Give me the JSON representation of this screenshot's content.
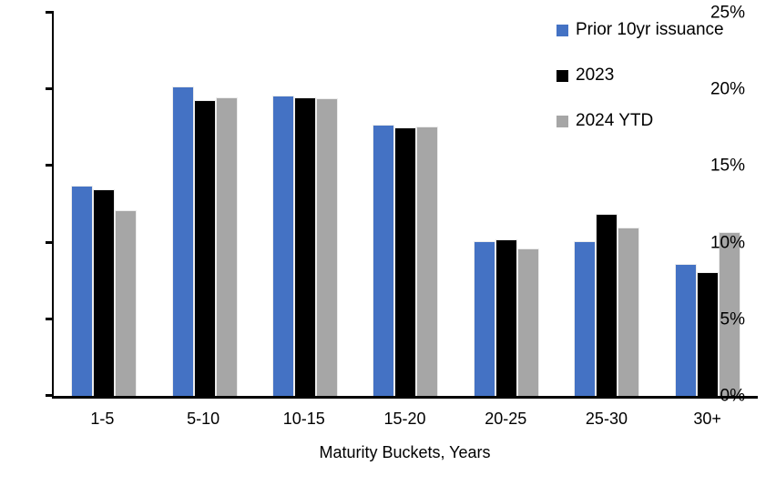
{
  "chart_data": {
    "type": "bar",
    "title": "",
    "xlabel": "Maturity Buckets, Years",
    "ylabel": "",
    "ylim": [
      0,
      25
    ],
    "y_ticks": [
      "0%",
      "5%",
      "10%",
      "15%",
      "20%",
      "25%"
    ],
    "grid": false,
    "legend_position": "top-right",
    "categories": [
      "1-5",
      "5-10",
      "10-15",
      "15-20",
      "20-25",
      "25-30",
      "30+"
    ],
    "series": [
      {
        "name": "Prior 10yr issuance",
        "color": "#4472C4",
        "values": [
          13.7,
          20.2,
          19.6,
          17.7,
          10.1,
          10.1,
          8.6
        ]
      },
      {
        "name": "2023",
        "color": "#000000",
        "values": [
          13.5,
          19.3,
          19.5,
          17.5,
          10.2,
          11.9,
          8.1
        ]
      },
      {
        "name": "2024 YTD",
        "color": "#A6A6A6",
        "values": [
          12.1,
          19.5,
          19.4,
          17.6,
          9.6,
          11.0,
          10.7
        ]
      }
    ]
  },
  "colors": {
    "axis": "#000000",
    "text": "#000000",
    "background": "#FFFFFF",
    "bar_border": "#ECECEC"
  }
}
